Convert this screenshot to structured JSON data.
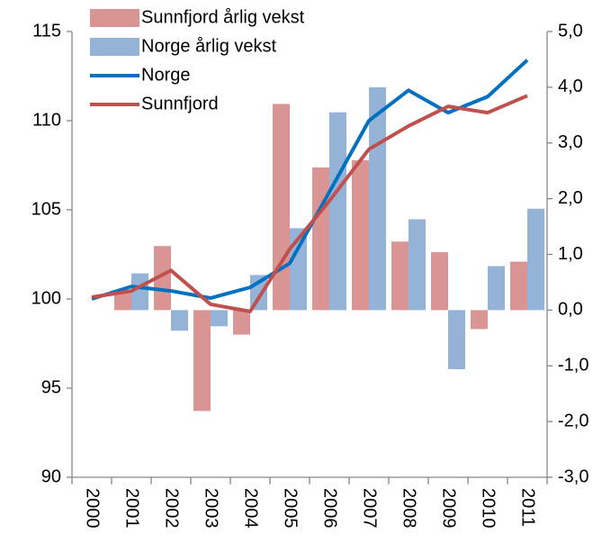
{
  "chart_data": {
    "type": "bar-line",
    "categories": [
      "2000",
      "2001",
      "2002",
      "2003",
      "2004",
      "2005",
      "2006",
      "2007",
      "2008",
      "2009",
      "2010",
      "2011"
    ],
    "series": [
      {
        "name": "Sunnfjord årlig vekst",
        "type": "bar",
        "axis": "y2",
        "color": "#d99594",
        "values": [
          null,
          0.34,
          1.15,
          -1.81,
          -0.44,
          3.7,
          2.56,
          2.69,
          1.23,
          1.04,
          -0.34,
          0.87
        ]
      },
      {
        "name": "Norge årlig vekst",
        "type": "bar",
        "axis": "y2",
        "color": "#95b3d7",
        "values": [
          null,
          0.66,
          -0.37,
          -0.29,
          0.63,
          1.47,
          3.55,
          4.0,
          1.63,
          -1.06,
          0.79,
          1.82
        ]
      },
      {
        "name": "Norge",
        "type": "line",
        "axis": "y",
        "color": "#0070c0",
        "values": [
          100,
          100.7,
          100.45,
          100.05,
          100.65,
          102,
          106,
          110,
          111.7,
          110.45,
          111.35,
          113.4
        ]
      },
      {
        "name": "Sunnfjord",
        "type": "line",
        "axis": "y",
        "color": "#c0504d",
        "values": [
          100.1,
          100.45,
          101.6,
          99.7,
          99.3,
          102.8,
          105.5,
          108.4,
          109.7,
          110.8,
          110.45,
          111.4
        ]
      }
    ],
    "ylim": [
      90,
      115
    ],
    "yticks": [
      90,
      95,
      100,
      105,
      110,
      115
    ],
    "y2lim": [
      -3,
      5
    ],
    "y2ticks": [
      {
        "value": -3,
        "label": "-3,0"
      },
      {
        "value": -2,
        "label": "-2,0"
      },
      {
        "value": -1,
        "label": "-1,0"
      },
      {
        "value": 0,
        "label": "0,0"
      },
      {
        "value": 1,
        "label": "1,0"
      },
      {
        "value": 2,
        "label": "2,0"
      },
      {
        "value": 3,
        "label": "3,0"
      },
      {
        "value": 4,
        "label": "4,0"
      },
      {
        "value": 5,
        "label": "5,0"
      }
    ],
    "legend": "top-left",
    "grid": false
  }
}
